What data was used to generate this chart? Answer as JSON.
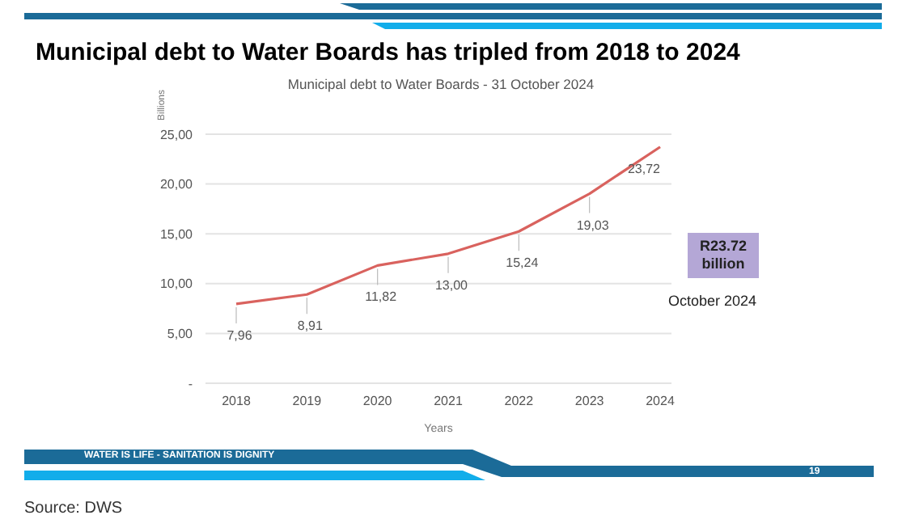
{
  "chart_data": {
    "type": "line",
    "title": "Municipal debt to Water Boards has tripled from 2018 to 2024",
    "subtitle": "Municipal debt to Water Boards - 31 October 2024",
    "xlabel": "Years",
    "ylabel": "Billions",
    "categories": [
      "2018",
      "2019",
      "2020",
      "2021",
      "2022",
      "2023",
      "2024"
    ],
    "series": [
      {
        "color": "#d9625e",
        "values": [
          7.96,
          8.91,
          11.82,
          13.0,
          15.24,
          19.03,
          23.72
        ],
        "value_labels": [
          "7,96",
          "8,91",
          "11,82",
          "13,00",
          "15,24",
          "19,03",
          "23,72"
        ]
      }
    ],
    "ylim": [
      0,
      25
    ],
    "yticks": [
      {
        "value": 0,
        "label": "-"
      },
      {
        "value": 5,
        "label": "5,00"
      },
      {
        "value": 10,
        "label": "10,00"
      },
      {
        "value": 15,
        "label": "15,00"
      },
      {
        "value": 20,
        "label": "20,00"
      },
      {
        "value": 25,
        "label": "25,00"
      }
    ],
    "grid": "y",
    "legend": false,
    "marker": "none",
    "line_style": "solid",
    "annotations": [
      "R23.72 billion",
      "October 2024",
      "WATER IS LIFE - SANITATION IS DIGNITY",
      "19",
      "Source: DWS"
    ]
  }
}
